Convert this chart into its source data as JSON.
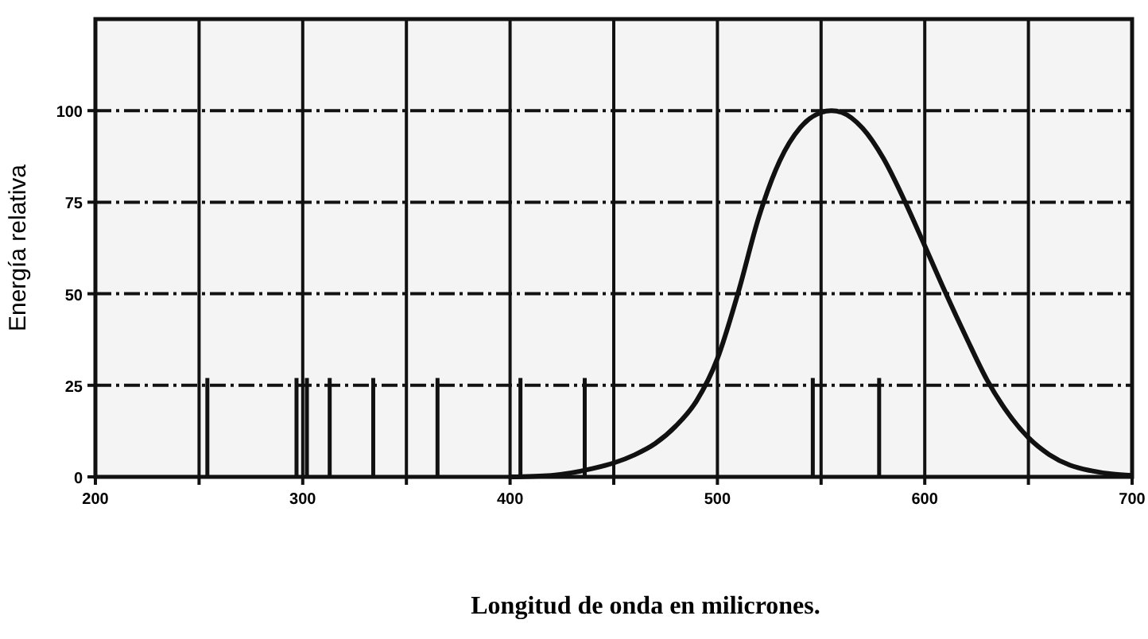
{
  "chart_data": {
    "type": "line",
    "xlabel": "Longitud de onda en milicrones.",
    "ylabel": "Energía relativa",
    "xlim": [
      200,
      700
    ],
    "ylim": [
      0,
      125
    ],
    "xticks": [
      200,
      {
        "value": 250,
        "label": null
      },
      300,
      {
        "value": 350,
        "label": null
      },
      400,
      {
        "value": 450,
        "label": null
      },
      500,
      {
        "value": 550,
        "label": null
      },
      600,
      {
        "value": 650,
        "label": null
      },
      700
    ],
    "yticks": [
      0,
      25,
      50,
      75,
      100
    ],
    "grid": true,
    "marker": "none",
    "series": [
      {
        "color": "#111111",
        "x": [
          400,
          420,
          440,
          450,
          460,
          470,
          480,
          490,
          500,
          510,
          520,
          530,
          540,
          550,
          555,
          560,
          570,
          580,
          590,
          600,
          610,
          620,
          630,
          640,
          650,
          660,
          670,
          680,
          690,
          700
        ],
        "values": [
          0,
          0.4,
          2.3,
          3.8,
          6,
          9.1,
          13.9,
          20.8,
          32.3,
          50.3,
          71,
          86.2,
          95.4,
          99.5,
          100,
          99.5,
          95.2,
          87,
          75.7,
          63.1,
          50.3,
          38.1,
          26.5,
          17.5,
          10.7,
          6.1,
          3.2,
          1.7,
          0.8,
          0.4
        ]
      },
      {
        "type": "bar",
        "color": "#111111",
        "x": [
          254,
          297,
          302,
          313,
          334,
          365,
          405,
          436,
          546,
          578
        ],
        "values": [
          27,
          27,
          27,
          27,
          27,
          27,
          27,
          27,
          27,
          27
        ]
      }
    ]
  }
}
